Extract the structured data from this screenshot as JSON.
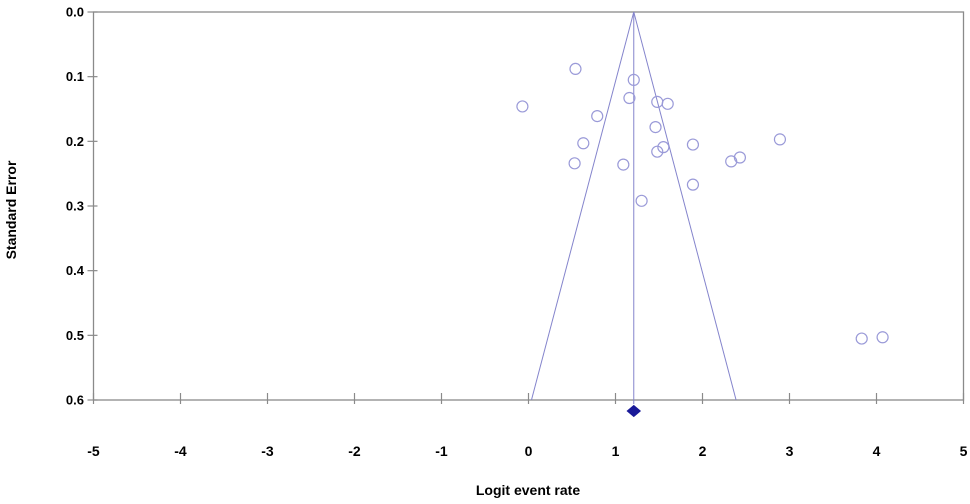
{
  "figure": {
    "background": "#ffffff"
  },
  "chart_data": {
    "type": "scatter",
    "subtype": "funnel-plot",
    "title": "",
    "xlabel": "Logit event rate",
    "ylabel": "Standard Error",
    "xlim": [
      -5,
      5
    ],
    "ylim": [
      0.0,
      0.6
    ],
    "y_axis_inverted": true,
    "grid": false,
    "legend_position": "none",
    "x_ticks": [
      -5,
      -4,
      -3,
      -2,
      -1,
      0,
      1,
      2,
      3,
      4,
      5
    ],
    "x_tick_labels": [
      "-5",
      "-4",
      "-3",
      "-2",
      "-1",
      "0",
      "1",
      "2",
      "3",
      "4",
      "5"
    ],
    "y_ticks": [
      0.0,
      0.1,
      0.2,
      0.3,
      0.4,
      0.5,
      0.6
    ],
    "y_tick_labels": [
      "0.0",
      "0.1",
      "0.2",
      "0.3",
      "0.4",
      "0.5",
      "0.6"
    ],
    "points": [
      {
        "x": -0.07,
        "se": 0.146
      },
      {
        "x": 0.54,
        "se": 0.088
      },
      {
        "x": 1.21,
        "se": 0.105
      },
      {
        "x": 1.16,
        "se": 0.133
      },
      {
        "x": 1.48,
        "se": 0.139
      },
      {
        "x": 1.6,
        "se": 0.142
      },
      {
        "x": 0.79,
        "se": 0.161
      },
      {
        "x": 1.46,
        "se": 0.178
      },
      {
        "x": 0.63,
        "se": 0.203
      },
      {
        "x": 1.55,
        "se": 0.209
      },
      {
        "x": 1.48,
        "se": 0.216
      },
      {
        "x": 1.89,
        "se": 0.205
      },
      {
        "x": 0.53,
        "se": 0.234
      },
      {
        "x": 1.09,
        "se": 0.236
      },
      {
        "x": 1.3,
        "se": 0.292
      },
      {
        "x": 1.89,
        "se": 0.267
      },
      {
        "x": 2.33,
        "se": 0.231
      },
      {
        "x": 2.43,
        "se": 0.225
      },
      {
        "x": 2.89,
        "se": 0.197
      },
      {
        "x": 3.83,
        "se": 0.505
      },
      {
        "x": 4.07,
        "se": 0.503
      }
    ],
    "funnel": {
      "apex_x": 1.21,
      "apex_se": 0.0,
      "ci_multiplier": 1.96,
      "se_max": 0.6
    },
    "summary_diamond": {
      "x": 1.21
    },
    "colors": {
      "axis": "#8a8a8a",
      "text": "#000000",
      "point_stroke": "#9a9ad8",
      "funnel_line": "#8484cc",
      "center_line": "#8484cc",
      "diamond_fill": "#1a1a99",
      "background": "#ffffff"
    }
  }
}
